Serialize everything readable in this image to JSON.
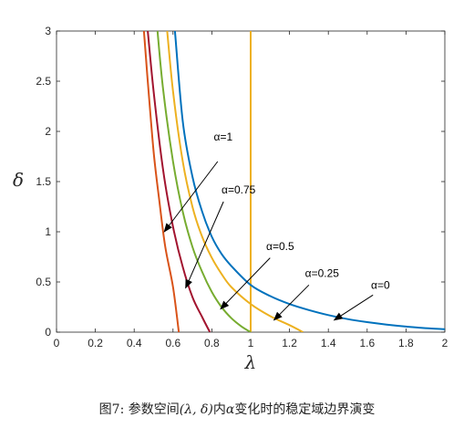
{
  "chart_data": {
    "type": "line",
    "xlabel": "λ",
    "ylabel": "δ",
    "xlim": [
      0,
      2
    ],
    "ylim": [
      0,
      3
    ],
    "xticks": [
      "0",
      "0.2",
      "0.4",
      "0.6",
      "0.8",
      "1",
      "1.2",
      "1.4",
      "1.6",
      "1.8",
      "2"
    ],
    "yticks": [
      "0",
      "0.5",
      "1",
      "1.5",
      "2",
      "2.5",
      "3"
    ],
    "grid": false,
    "series": [
      {
        "name": "α=0",
        "color": "#0072BD",
        "points": [
          [
            0.61,
            3
          ],
          [
            0.65,
            2.1
          ],
          [
            0.7,
            1.55
          ],
          [
            0.75,
            1.2
          ],
          [
            0.8,
            0.95
          ],
          [
            0.85,
            0.78
          ],
          [
            0.9,
            0.66
          ],
          [
            1.0,
            0.47
          ],
          [
            1.1,
            0.36
          ],
          [
            1.2,
            0.28
          ],
          [
            1.3,
            0.22
          ],
          [
            1.4,
            0.17
          ],
          [
            1.5,
            0.13
          ],
          [
            1.6,
            0.1
          ],
          [
            1.7,
            0.075
          ],
          [
            1.8,
            0.055
          ],
          [
            1.9,
            0.04
          ],
          [
            2.0,
            0.03
          ]
        ]
      },
      {
        "name": "α=0.25",
        "color": "#EDB120",
        "points": [
          [
            0.57,
            3
          ],
          [
            0.6,
            2.4
          ],
          [
            0.65,
            1.7
          ],
          [
            0.7,
            1.25
          ],
          [
            0.75,
            0.95
          ],
          [
            0.8,
            0.74
          ],
          [
            0.85,
            0.58
          ],
          [
            0.9,
            0.45
          ],
          [
            1.0,
            0.28
          ],
          [
            1.1,
            0.16
          ],
          [
            1.2,
            0.07
          ],
          [
            1.27,
            0.0
          ]
        ]
      },
      {
        "name": "α=0.5",
        "color": "#77AC30",
        "points": [
          [
            0.52,
            3
          ],
          [
            0.55,
            2.4
          ],
          [
            0.6,
            1.7
          ],
          [
            0.65,
            1.2
          ],
          [
            0.7,
            0.85
          ],
          [
            0.75,
            0.6
          ],
          [
            0.8,
            0.4
          ],
          [
            0.85,
            0.25
          ],
          [
            0.9,
            0.14
          ],
          [
            0.95,
            0.06
          ],
          [
            1.0,
            0.0
          ]
        ]
      },
      {
        "name": "α=0.75",
        "color": "#A2142F",
        "points": [
          [
            0.47,
            3
          ],
          [
            0.5,
            2.4
          ],
          [
            0.55,
            1.6
          ],
          [
            0.6,
            1.05
          ],
          [
            0.65,
            0.65
          ],
          [
            0.7,
            0.35
          ],
          [
            0.75,
            0.15
          ],
          [
            0.79,
            0.0
          ]
        ]
      },
      {
        "name": "α=1",
        "color": "#D95319",
        "points": [
          [
            0.45,
            3
          ],
          [
            0.47,
            2.5
          ],
          [
            0.5,
            1.8
          ],
          [
            0.53,
            1.3
          ],
          [
            0.56,
            0.85
          ],
          [
            0.6,
            0.45
          ],
          [
            0.63,
            0.0
          ]
        ]
      }
    ],
    "vertical_line": {
      "x": 1,
      "color": "#EDB120"
    },
    "annotations": [
      {
        "text": "α=1",
        "text_at": [
          0.81,
          1.91
        ],
        "arrow_from": [
          0.83,
          1.7
        ],
        "arrow_to": [
          0.555,
          1.0
        ]
      },
      {
        "text": "α=0.75",
        "text_at": [
          0.85,
          1.38
        ],
        "arrow_from": [
          0.86,
          1.3
        ],
        "arrow_to": [
          0.665,
          0.44
        ]
      },
      {
        "text": "α=0.5",
        "text_at": [
          1.08,
          0.82
        ],
        "arrow_from": [
          1.1,
          0.74
        ],
        "arrow_to": [
          0.845,
          0.23
        ]
      },
      {
        "text": "α=0.25",
        "text_at": [
          1.28,
          0.55
        ],
        "arrow_from": [
          1.3,
          0.47
        ],
        "arrow_to": [
          1.12,
          0.12
        ]
      },
      {
        "text": "α=0",
        "text_at": [
          1.62,
          0.43
        ],
        "arrow_from": [
          1.63,
          0.37
        ],
        "arrow_to": [
          1.43,
          0.12
        ]
      }
    ]
  },
  "caption": {
    "prefix": "图7: 参数空间",
    "math": "(λ, δ)",
    "middle": "内",
    "alpha": "α",
    "suffix": "变化时的稳定域边界演变"
  }
}
